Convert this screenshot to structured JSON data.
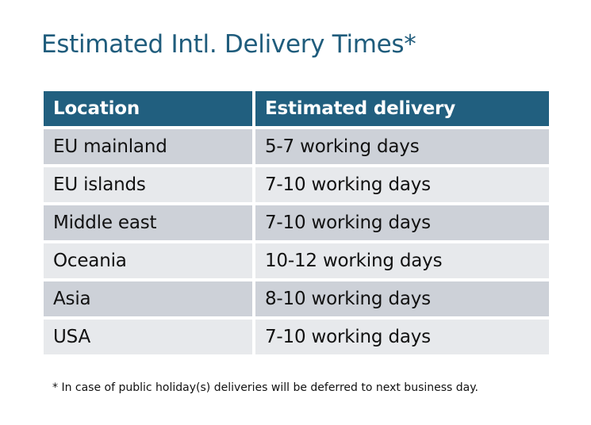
{
  "title": "Estimated Intl. Delivery Times*",
  "table": {
    "headers": [
      "Location",
      "Estimated delivery"
    ],
    "rows": [
      [
        "EU mainland",
        "5-7 working days"
      ],
      [
        "EU islands",
        "7-10 working days"
      ],
      [
        "Middle east",
        "7-10 working days"
      ],
      [
        "Oceania",
        "10-12 working days"
      ],
      [
        "Asia",
        "8-10 working days"
      ],
      [
        "USA",
        "7-10 working days"
      ]
    ]
  },
  "footnote": "* In case of public holiday(s) deliveries will be deferred to next business day.",
  "colors": {
    "header": "#215F7F",
    "title": "#1F5C7C",
    "row_dark": "#CDD1D8",
    "row_light": "#E7E9EC"
  }
}
